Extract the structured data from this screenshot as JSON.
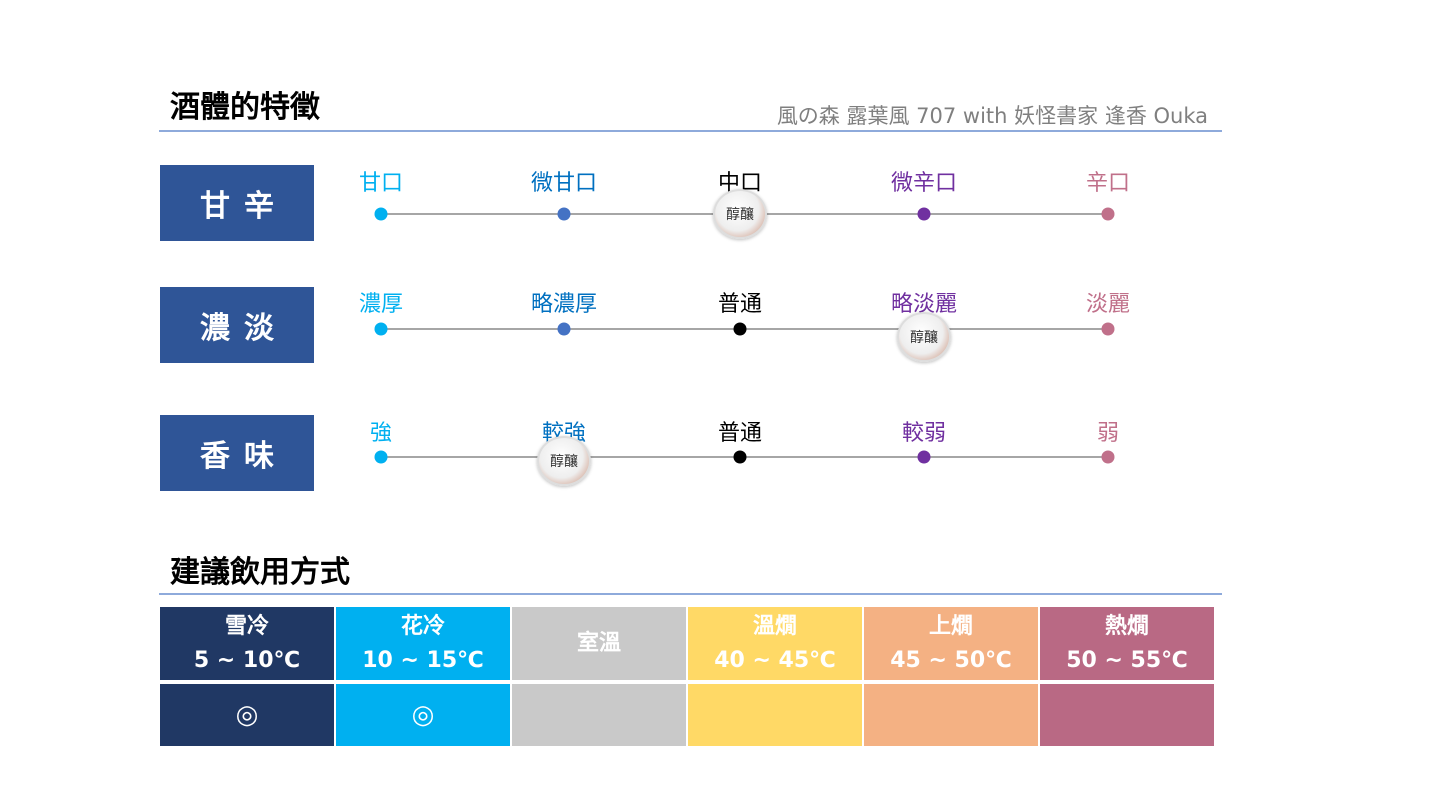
{
  "section1_title": "酒體的特徵",
  "credit": "風の森 露葉風 707 with 妖怪書家 逢香 Ouka",
  "marker_text": "醇釀",
  "scale_colors": [
    "#00b0f0",
    "#4472c4",
    "#000000",
    "#7030a0",
    "#c0708a"
  ],
  "label_colors": [
    "#00b0f0",
    "#0070c0",
    "#000000",
    "#7030a0",
    "#c0708a"
  ],
  "rows": [
    {
      "category": "甘辛",
      "labels": [
        "甘口",
        "微甘口",
        "中口",
        "微辛口",
        "辛口"
      ],
      "selected_index": 2
    },
    {
      "category": "濃淡",
      "labels": [
        "濃厚",
        "略濃厚",
        "普通",
        "略淡麗",
        "淡麗"
      ],
      "selected_index": 3
    },
    {
      "category": "香味",
      "labels": [
        "強",
        "較強",
        "普通",
        "較弱",
        "弱"
      ],
      "selected_index": 1
    }
  ],
  "section2_title": "建議飲用方式",
  "serving": [
    {
      "name": "雪冷",
      "range": "5 ~ 10℃",
      "mark": "◎",
      "color": "#203864"
    },
    {
      "name": "花冷",
      "range": "10 ~ 15℃",
      "mark": "◎",
      "color": "#00b0f0"
    },
    {
      "name": "室溫",
      "range": "",
      "mark": "",
      "color": "#c9c9c9"
    },
    {
      "name": "溫燗",
      "range": "40 ~ 45℃",
      "mark": "",
      "color": "#ffd966"
    },
    {
      "name": "上燗",
      "range": "45 ~ 50℃",
      "mark": "",
      "color": "#f4b183"
    },
    {
      "name": "熱燗",
      "range": "50 ~ 55℃",
      "mark": "",
      "color": "#b96984"
    }
  ]
}
